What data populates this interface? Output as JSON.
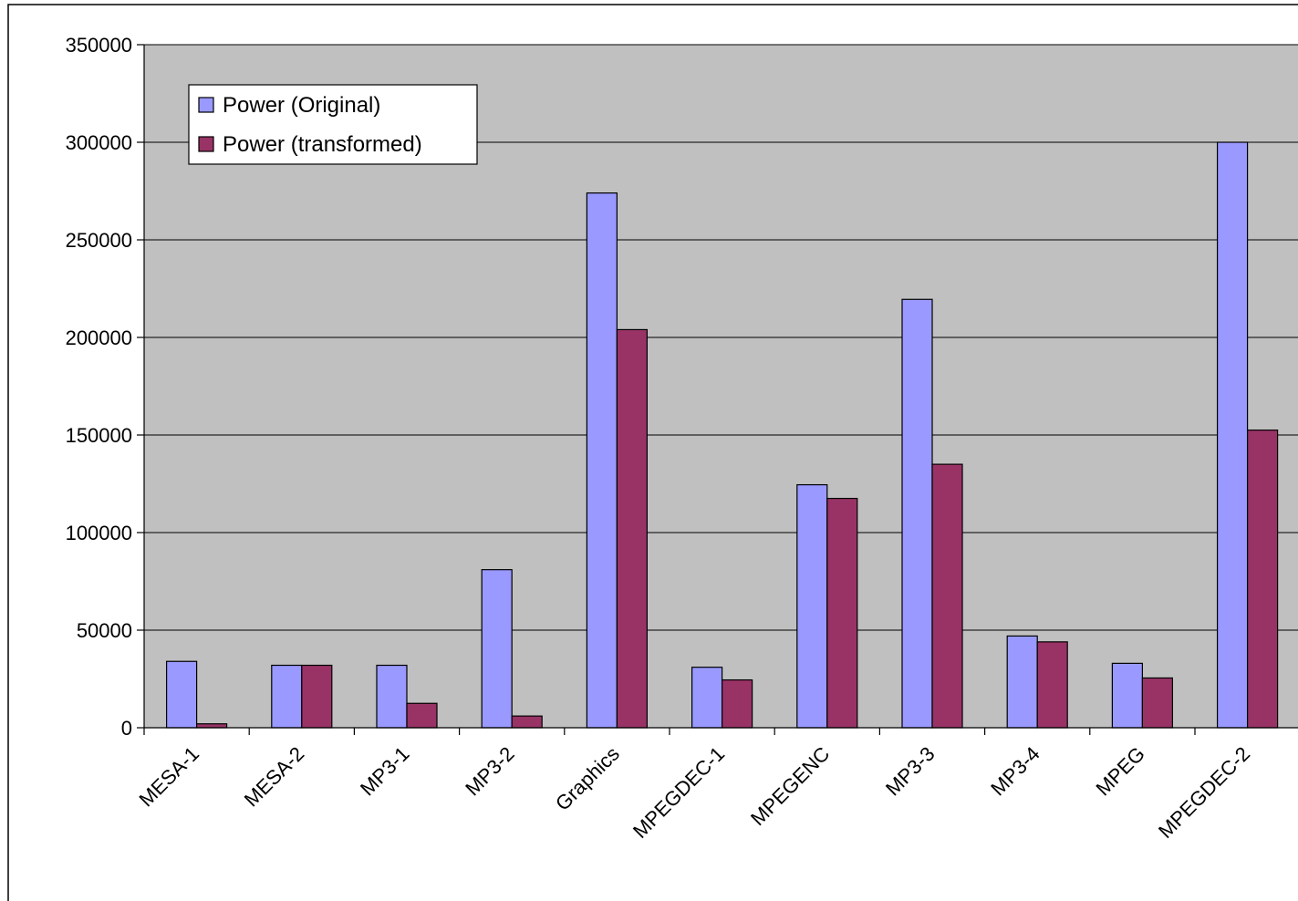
{
  "chart_data": {
    "type": "bar",
    "title": "",
    "xlabel": "",
    "ylabel": "",
    "categories": [
      "MESA-1",
      "MESA-2",
      "MP3-1",
      "MP3-2",
      "Graphics",
      "MPEGDEC-1",
      "MPEGENC",
      "MP3-3",
      "MP3-4",
      "MPEG",
      "MPEGDEC-2"
    ],
    "series": [
      {
        "name": "Power (Original)",
        "color": "#9999ff",
        "values": [
          34000,
          32000,
          32000,
          81000,
          274000,
          31000,
          124500,
          219500,
          47000,
          33000,
          300000
        ]
      },
      {
        "name": "Power (transformed)",
        "color": "#993366",
        "values": [
          2000,
          32000,
          12500,
          6000,
          204000,
          24500,
          117500,
          135000,
          44000,
          25500,
          152500
        ]
      }
    ],
    "ylim": [
      0,
      350000
    ],
    "yticks": [
      "0",
      "50000",
      "100000",
      "150000",
      "200000",
      "250000",
      "300000",
      "350000"
    ],
    "grid": true,
    "plot_background": "#c0c0c0",
    "legend_position": "top-left"
  }
}
